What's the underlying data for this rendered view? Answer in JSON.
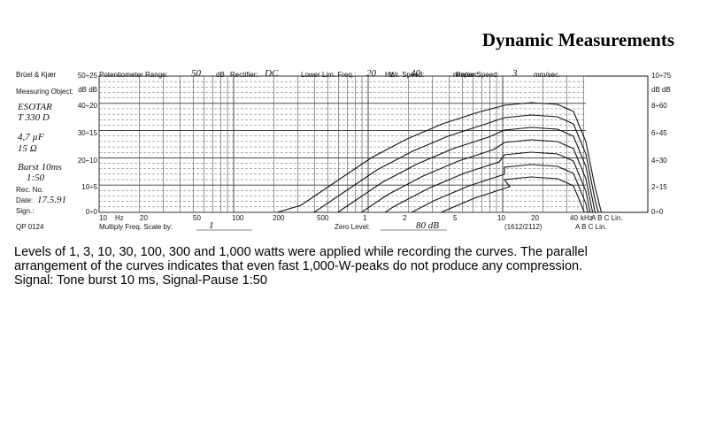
{
  "header": {
    "title": "Dynamic Measurements"
  },
  "form": {
    "brand": "Brüel & Kjær",
    "settings": [
      {
        "label": "Potentiometer Range:",
        "value": "50",
        "unit": "dB"
      },
      {
        "label": "Rectifier:",
        "value": "DC",
        "unit": ""
      },
      {
        "label": "Lower Lim. Freq.:",
        "value": "20",
        "unit": "Hz"
      },
      {
        "label": "Wr. Speed:",
        "value": "40",
        "unit": "mm/sec."
      },
      {
        "label": "Paper Speed:",
        "value": "3",
        "unit": "mm/sec."
      }
    ],
    "object_label": "Measuring Object:",
    "object_lines": [
      "ESOTAR",
      "T 330 D",
      "4,7 µF",
      "15 Ω",
      "Burst 10ms",
      "1:50"
    ],
    "rec_label": "Rec. No.",
    "date_label": "Date:",
    "date": "17.5.91",
    "sign_label": "Sign.:",
    "left_axis": [
      "50÷25",
      "dB dB",
      "40÷20",
      "30÷15",
      "20÷10",
      "10÷5",
      "0÷0"
    ],
    "right_axis": [
      "10÷75",
      "dB dB",
      "8÷60",
      "6÷45",
      "4÷30",
      "2÷15",
      "0÷0"
    ],
    "freq_labels": [
      "10",
      "Hz",
      "20",
      "50",
      "100",
      "200",
      "500",
      "1",
      "2",
      "5",
      "10",
      "20",
      "40",
      "kHz"
    ],
    "weighting": "A B C Lin.",
    "form_no": "QP 0124",
    "multiply_label": "Multiply Freq. Scale by:",
    "multiply": "1",
    "zero_label": "Zero Level:",
    "zero": "80 dB",
    "code": "(1612/2112)"
  },
  "caption": [
    "Levels of 1, 3, 10, 30, 100, 300 and 1,000 watts were applied while recording the curves. The parallel",
    "arrangement of the curves indicates that even fast 1,000-W-peaks do not produce any compression.",
    "Signal: Tone burst 10 ms, Signal-Pause 1:50"
  ]
}
